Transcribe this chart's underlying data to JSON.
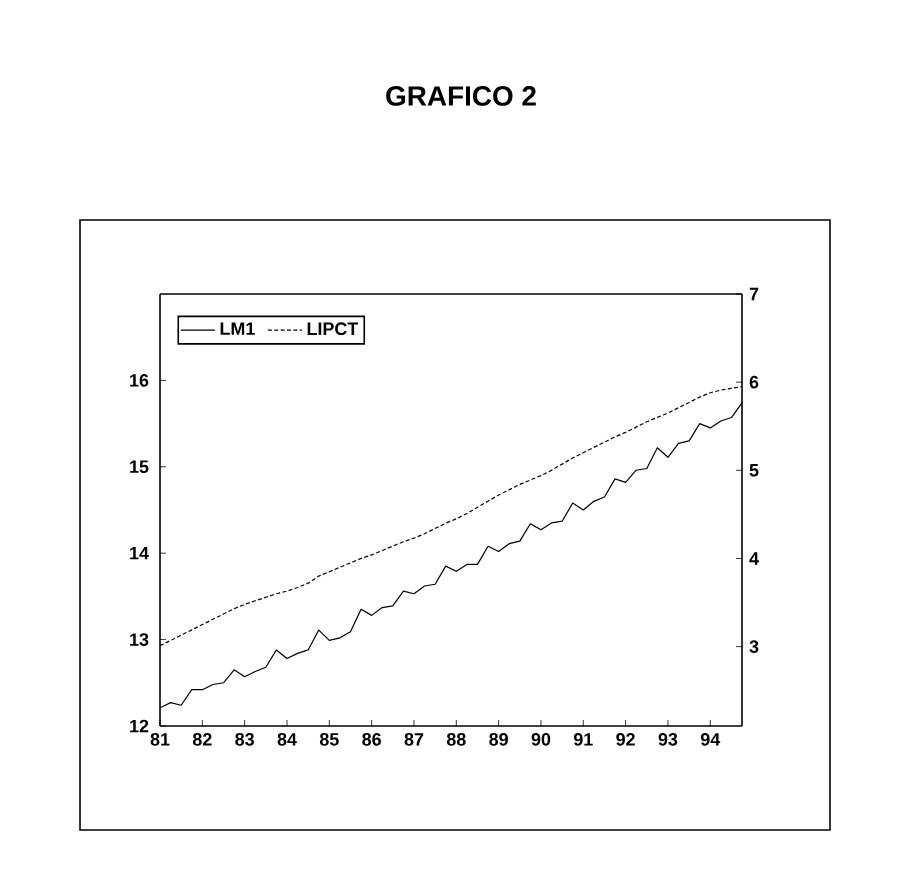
{
  "chart_data": {
    "type": "line",
    "title": "GRAFICO 2",
    "x": [
      1981,
      1981.25,
      1981.5,
      1981.75,
      1982,
      1982.25,
      1982.5,
      1982.75,
      1983,
      1983.25,
      1983.5,
      1983.75,
      1984,
      1984.25,
      1984.5,
      1984.75,
      1985,
      1985.25,
      1985.5,
      1985.75,
      1986,
      1986.25,
      1986.5,
      1986.75,
      1987,
      1987.25,
      1987.5,
      1987.75,
      1988,
      1988.25,
      1988.5,
      1988.75,
      1989,
      1989.25,
      1989.5,
      1989.75,
      1990,
      1990.25,
      1990.5,
      1990.75,
      1991,
      1991.25,
      1991.5,
      1991.75,
      1992,
      1992.25,
      1992.5,
      1992.75,
      1993,
      1993.25,
      1993.5,
      1993.75,
      1994,
      1994.25,
      1994.5,
      1994.75
    ],
    "series": [
      {
        "name": "LM1",
        "color": "#000000",
        "line_style": "solid",
        "values": [
          12.21,
          12.27,
          12.24,
          12.42,
          12.42,
          12.48,
          12.5,
          12.65,
          12.57,
          12.63,
          12.68,
          12.88,
          12.78,
          12.84,
          12.88,
          13.11,
          12.99,
          13.02,
          13.09,
          13.35,
          13.28,
          13.37,
          13.39,
          13.56,
          13.53,
          13.62,
          13.64,
          13.85,
          13.79,
          13.87,
          13.87,
          14.08,
          14.02,
          14.11,
          14.14,
          14.34,
          14.27,
          14.35,
          14.37,
          14.58,
          14.5,
          14.6,
          14.65,
          14.86,
          14.82,
          14.96,
          14.98,
          15.22,
          15.11,
          15.27,
          15.3,
          15.5,
          15.45,
          15.53,
          15.57,
          15.74
        ]
      },
      {
        "name": "LIPCT",
        "color": "#000000",
        "line_style": "dashed",
        "axis": "y2",
        "values": [
          3.01,
          3.07,
          3.13,
          3.19,
          3.25,
          3.31,
          3.37,
          3.43,
          3.48,
          3.52,
          3.56,
          3.6,
          3.63,
          3.67,
          3.72,
          3.8,
          3.85,
          3.9,
          3.95,
          4.0,
          4.04,
          4.09,
          4.14,
          4.19,
          4.23,
          4.28,
          4.34,
          4.4,
          4.45,
          4.51,
          4.58,
          4.65,
          4.72,
          4.78,
          4.84,
          4.89,
          4.94,
          5.0,
          5.07,
          5.14,
          5.2,
          5.26,
          5.32,
          5.38,
          5.43,
          5.49,
          5.55,
          5.6,
          5.65,
          5.71,
          5.77,
          5.83,
          5.88,
          5.91,
          5.93,
          5.95
        ]
      }
    ],
    "xlim": [
      1981,
      1994.75
    ],
    "xticks": [
      {
        "value": 1981,
        "label": "81"
      },
      {
        "value": 1982,
        "label": "82"
      },
      {
        "value": 1983,
        "label": "83"
      },
      {
        "value": 1984,
        "label": "84"
      },
      {
        "value": 1985,
        "label": "85"
      },
      {
        "value": 1986,
        "label": "86"
      },
      {
        "value": 1987,
        "label": "87"
      },
      {
        "value": 1988,
        "label": "88"
      },
      {
        "value": 1989,
        "label": "89"
      },
      {
        "value": 1990,
        "label": "90"
      },
      {
        "value": 1991,
        "label": "91"
      },
      {
        "value": 1992,
        "label": "92"
      },
      {
        "value": 1993,
        "label": "93"
      },
      {
        "value": 1994,
        "label": "94"
      }
    ],
    "ylim": [
      12,
      17
    ],
    "yticks": [
      12,
      13,
      14,
      15,
      16
    ],
    "y2lim": [
      2.1,
      7
    ],
    "y2ticks": [
      3,
      4,
      5,
      6,
      7
    ],
    "legend": "top left",
    "grid": false,
    "marker": "none"
  }
}
